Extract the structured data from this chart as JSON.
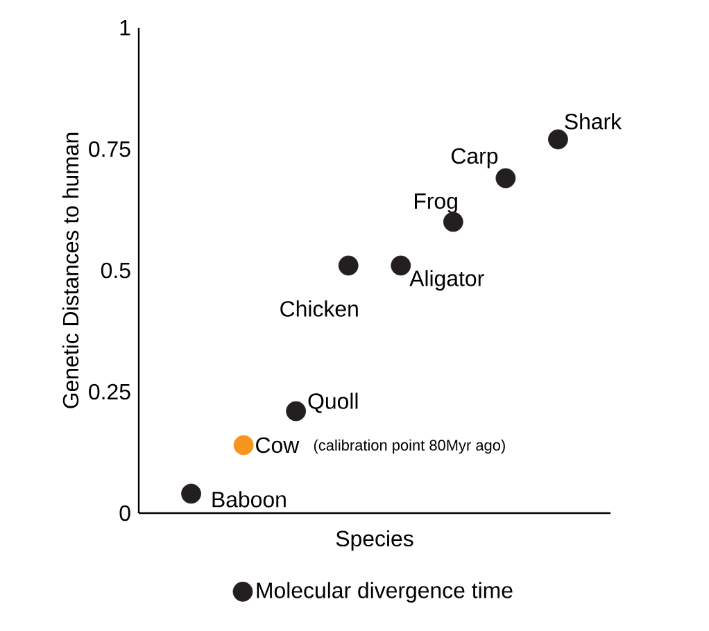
{
  "chart_data": {
    "type": "scatter",
    "xlabel": "Species",
    "ylabel": "Genetic Distances to human",
    "categories": [
      null,
      null,
      null,
      null,
      null,
      null,
      null,
      null
    ],
    "series": [
      {
        "name": "Molecular divergence time",
        "color": "#231f20",
        "colors": [
          "#231f20",
          "#f7941d",
          "#231f20",
          "#231f20",
          "#231f20",
          "#231f20",
          "#231f20",
          "#231f20"
        ],
        "values": [
          0.04,
          0.14,
          0.21,
          0.51,
          0.51,
          0.6,
          0.69,
          0.77
        ]
      }
    ],
    "ylim": [
      0,
      1
    ],
    "yticks": [
      0,
      0.25,
      0.5,
      0.75,
      1
    ],
    "marker": "circle",
    "legend": "bottom",
    "grid": false,
    "annotations": [
      "Baboon",
      "Cow",
      "(calibration point 80Myr ago)",
      "Quoll",
      "Chicken",
      "Aligator",
      "Frog",
      "Carp",
      "Shark"
    ]
  }
}
